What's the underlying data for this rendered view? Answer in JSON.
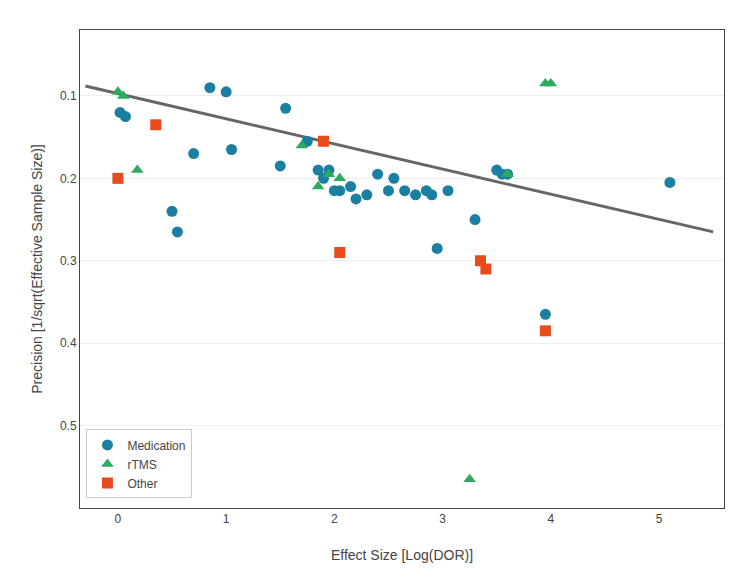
{
  "chart_data": {
    "type": "scatter",
    "xlabel": "Effect Size [Log(DOR)]",
    "ylabel": "Precision [1/sqrt(Effective Sample Size)]",
    "series": [
      {
        "name": "Medication",
        "color": "#1a7fa0",
        "marker": "circle",
        "x": [
          0.02,
          0.07,
          0.5,
          0.55,
          0.7,
          0.85,
          1.0,
          1.05,
          1.5,
          1.55,
          1.75,
          1.85,
          1.9,
          1.95,
          2.0,
          2.05,
          2.15,
          2.2,
          2.3,
          2.4,
          2.5,
          2.55,
          2.65,
          2.75,
          2.85,
          2.9,
          2.95,
          3.05,
          3.3,
          3.5,
          3.55,
          3.6,
          3.95,
          5.1
        ],
        "y": [
          0.12,
          0.125,
          0.24,
          0.265,
          0.17,
          0.09,
          0.095,
          0.165,
          0.185,
          0.115,
          0.155,
          0.19,
          0.2,
          0.19,
          0.215,
          0.215,
          0.21,
          0.225,
          0.22,
          0.195,
          0.215,
          0.2,
          0.215,
          0.22,
          0.215,
          0.22,
          0.285,
          0.215,
          0.25,
          0.19,
          0.195,
          0.195,
          0.365,
          0.205
        ]
      },
      {
        "name": "rTMS",
        "color": "#2eaa5e",
        "marker": "triangle-up",
        "x": [
          0.0,
          0.05,
          0.18,
          1.7,
          1.85,
          1.95,
          2.05,
          3.25,
          3.6,
          3.95,
          4.0
        ],
        "y": [
          0.095,
          0.1,
          0.19,
          0.16,
          0.21,
          0.195,
          0.2,
          0.565,
          0.195,
          0.085,
          0.085
        ]
      },
      {
        "name": "Other",
        "color": "#e84c1e",
        "marker": "square",
        "x": [
          0.0,
          0.35,
          1.9,
          2.05,
          3.35,
          3.4,
          3.95
        ],
        "y": [
          0.2,
          0.135,
          0.155,
          0.29,
          0.3,
          0.31,
          0.385
        ]
      }
    ],
    "regression_line": {
      "type": "line",
      "color": "#666666",
      "x": [
        -0.3,
        5.5
      ],
      "y": [
        0.088,
        0.265
      ]
    },
    "xlim": [
      -0.35,
      5.6
    ],
    "ylim": [
      0.6,
      0.02
    ],
    "xticks": [
      0,
      1,
      2,
      3,
      4,
      5
    ],
    "yticks": [
      0.1,
      0.2,
      0.3,
      0.4,
      0.5
    ],
    "grid": "y",
    "legend": "lower left"
  }
}
